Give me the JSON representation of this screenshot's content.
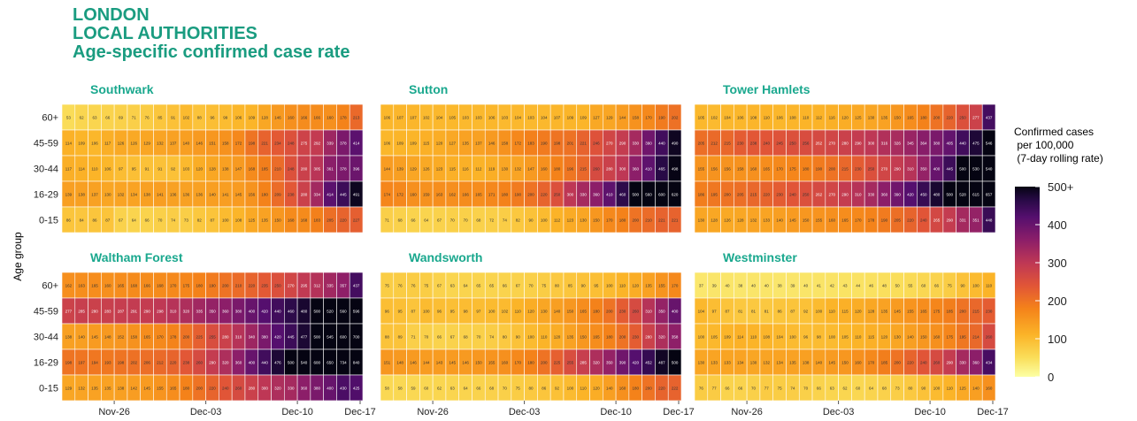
{
  "title_lines": [
    "LONDON",
    "LOCAL AUTHORITIES",
    "Age-specific confirmed case rate"
  ],
  "colors": {
    "title": "#1a9c80",
    "panel_title": "#1aa88e"
  },
  "chart_data": {
    "type": "heatmap",
    "ylabel": "Age group",
    "age_groups": [
      "60+",
      "45-59",
      "30-44",
      "16-29",
      "0-15"
    ],
    "x_tick_labels": [
      "Nov-26",
      "Dec-03",
      "Dec-10",
      "Dec-17"
    ],
    "legend": {
      "title": "Confirmed cases\n per 100,000\n (7-day rolling rate)",
      "tick_labels": [
        "500+",
        "400",
        "300",
        "200",
        "100",
        "0"
      ],
      "range": [
        0,
        500
      ]
    },
    "panels": [
      {
        "name": "Southwark",
        "rows": [
          [
            53,
            62,
            63,
            66,
            69,
            71,
            76,
            85,
            91,
            102,
            88,
            96,
            99,
            106,
            109,
            128,
            146,
            160,
            166,
            166,
            160,
            178,
            213
          ],
          [
            114,
            109,
            106,
            117,
            126,
            126,
            129,
            132,
            137,
            140,
            146,
            151,
            158,
            172,
            198,
            221,
            234,
            248,
            275,
            292,
            339,
            378,
            414
          ],
          [
            117,
            114,
            110,
            106,
            97,
            95,
            91,
            91,
            92,
            103,
            120,
            128,
            138,
            147,
            168,
            185,
            210,
            248,
            280,
            305,
            361,
            378,
            396
          ],
          [
            139,
            138,
            137,
            130,
            132,
            134,
            138,
            141,
            136,
            136,
            136,
            140,
            141,
            145,
            156,
            180,
            209,
            238,
            280,
            334,
            414,
            445,
            491
          ],
          [
            86,
            84,
            86,
            87,
            67,
            64,
            66,
            70,
            74,
            73,
            82,
            87,
            100,
            108,
            125,
            135,
            150,
            168,
            168,
            183,
            205,
            220,
            227
          ]
        ]
      },
      {
        "name": "Sutton",
        "rows": [
          [
            106,
            107,
            107,
            102,
            104,
            105,
            103,
            103,
            106,
            103,
            104,
            103,
            104,
            107,
            109,
            109,
            127,
            129,
            144,
            158,
            170,
            190,
            202
          ],
          [
            106,
            109,
            109,
            115,
            120,
            127,
            135,
            137,
            146,
            158,
            172,
            183,
            190,
            198,
            201,
            221,
            246,
            270,
            290,
            330,
            390,
            440,
            490
          ],
          [
            144,
            139,
            129,
            126,
            123,
            115,
            116,
            112,
            119,
            130,
            132,
            147,
            160,
            180,
            196,
            215,
            260,
            280,
            300,
            360,
            410,
            465,
            498
          ],
          [
            174,
            172,
            160,
            159,
            163,
            162,
            166,
            165,
            171,
            180,
            190,
            200,
            220,
            250,
            300,
            330,
            360,
            410,
            460,
            500,
            560,
            600,
            620
          ],
          [
            71,
            68,
            66,
            64,
            67,
            70,
            70,
            68,
            72,
            74,
            82,
            90,
            100,
            112,
            123,
            130,
            150,
            170,
            180,
            200,
            210,
            221,
            221
          ]
        ]
      },
      {
        "name": "Tower Hamlets",
        "rows": [
          [
            105,
            102,
            104,
            106,
            108,
            110,
            106,
            108,
            110,
            112,
            116,
            120,
            125,
            130,
            135,
            150,
            165,
            180,
            200,
            220,
            250,
            277,
            437
          ],
          [
            205,
            212,
            215,
            230,
            238,
            240,
            245,
            250,
            256,
            262,
            270,
            280,
            290,
            300,
            316,
            326,
            345,
            364,
            380,
            405,
            440,
            475,
            546
          ],
          [
            155,
            156,
            156,
            158,
            160,
            165,
            170,
            175,
            180,
            190,
            200,
            215,
            230,
            250,
            270,
            290,
            310,
            350,
            400,
            445,
            500,
            530,
            540
          ],
          [
            186,
            195,
            200,
            205,
            215,
            220,
            230,
            240,
            250,
            262,
            270,
            290,
            310,
            330,
            360,
            390,
            420,
            450,
            480,
            500,
            528,
            615,
            657
          ],
          [
            130,
            128,
            126,
            128,
            132,
            133,
            140,
            145,
            150,
            155,
            160,
            165,
            170,
            178,
            190,
            205,
            220,
            240,
            265,
            290,
            331,
            351,
            448
          ]
        ]
      },
      {
        "name": "Waltham Forest",
        "rows": [
          [
            162,
            163,
            165,
            160,
            165,
            168,
            166,
            168,
            170,
            175,
            180,
            190,
            200,
            210,
            220,
            235,
            250,
            270,
            295,
            312,
            335,
            357,
            437
          ],
          [
            277,
            285,
            280,
            283,
            287,
            291,
            290,
            298,
            310,
            320,
            335,
            350,
            360,
            380,
            400,
            420,
            440,
            460,
            480,
            500,
            520,
            560,
            596
          ],
          [
            138,
            140,
            145,
            148,
            152,
            158,
            165,
            170,
            178,
            200,
            225,
            255,
            280,
            310,
            340,
            380,
            420,
            445,
            477,
            500,
            545,
            600,
            700
          ],
          [
            198,
            197,
            194,
            193,
            198,
            202,
            206,
            212,
            220,
            238,
            260,
            290,
            320,
            360,
            400,
            440,
            476,
            500,
            540,
            600,
            650,
            734,
            840
          ],
          [
            129,
            132,
            135,
            135,
            138,
            142,
            145,
            155,
            165,
            180,
            200,
            220,
            240,
            260,
            280,
            300,
            320,
            330,
            360,
            380,
            400,
            430,
            425
          ]
        ]
      },
      {
        "name": "Wandsworth",
        "rows": [
          [
            75,
            76,
            76,
            75,
            67,
            63,
            64,
            65,
            65,
            66,
            67,
            70,
            75,
            80,
            85,
            90,
            95,
            100,
            110,
            120,
            135,
            155,
            170
          ],
          [
            96,
            95,
            87,
            100,
            96,
            95,
            98,
            97,
            100,
            102,
            110,
            120,
            130,
            140,
            150,
            165,
            180,
            200,
            230,
            260,
            310,
            350,
            400
          ],
          [
            88,
            89,
            71,
            70,
            66,
            67,
            68,
            70,
            74,
            80,
            90,
            100,
            110,
            120,
            135,
            150,
            165,
            180,
            200,
            230,
            280,
            320,
            358
          ],
          [
            151,
            148,
            146,
            144,
            143,
            145,
            146,
            150,
            155,
            160,
            170,
            180,
            200,
            225,
            255,
            285,
            320,
            350,
            390,
            420,
            452,
            487,
            500
          ],
          [
            58,
            58,
            59,
            60,
            62,
            63,
            64,
            66,
            68,
            70,
            75,
            80,
            86,
            92,
            100,
            110,
            120,
            140,
            160,
            180,
            200,
            220,
            222
          ]
        ]
      },
      {
        "name": "Westminster",
        "rows": [
          [
            37,
            39,
            40,
            38,
            40,
            40,
            38,
            39,
            40,
            41,
            42,
            43,
            44,
            46,
            48,
            50,
            55,
            60,
            66,
            75,
            90,
            100,
            110
          ],
          [
            104,
            97,
            87,
            81,
            81,
            81,
            86,
            87,
            92,
            100,
            110,
            115,
            120,
            128,
            135,
            145,
            155,
            165,
            175,
            185,
            200,
            215,
            230
          ],
          [
            100,
            105,
            109,
            114,
            110,
            108,
            104,
            100,
            96,
            98,
            100,
            105,
            110,
            115,
            120,
            130,
            140,
            150,
            160,
            175,
            195,
            214,
            260
          ],
          [
            130,
            133,
            133,
            134,
            130,
            132,
            134,
            135,
            138,
            140,
            145,
            150,
            160,
            170,
            185,
            200,
            220,
            240,
            260,
            290,
            330,
            360,
            434
          ],
          [
            76,
            77,
            66,
            66,
            70,
            77,
            75,
            74,
            70,
            66,
            63,
            62,
            60,
            64,
            68,
            73,
            80,
            90,
            100,
            110,
            125,
            140,
            160
          ]
        ]
      }
    ]
  }
}
